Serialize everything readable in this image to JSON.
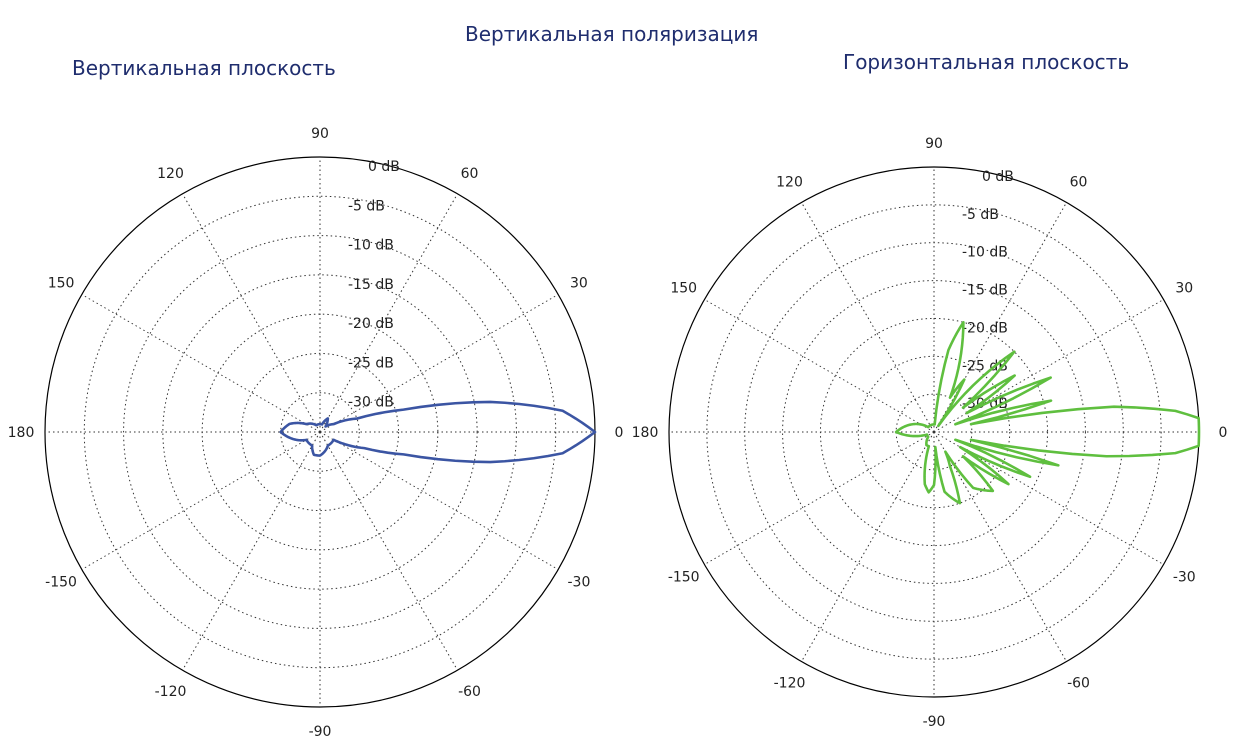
{
  "titles": {
    "main": "Вертикальная поляризация",
    "left": "Вертикальная плоскость",
    "right": "Горизонтальная плоскость"
  },
  "chart_data": [
    {
      "type": "polar",
      "title": "Вертикальная плоскость",
      "color": "#3b55a3",
      "angle_ticks": [
        "0",
        "30",
        "60",
        "90",
        "120",
        "150",
        "180",
        "-150",
        "-120",
        "-90",
        "-60",
        "-30"
      ],
      "radial_ticks": [
        "0 dB",
        "-5 dB",
        "-10 dB",
        "-15 dB",
        "-20 dB",
        "-25 dB",
        "-30 dB"
      ],
      "rlim_db": [
        -35,
        0
      ],
      "grid": true,
      "series": [
        {
          "angles_deg": [
            -180,
            -150,
            -120,
            -105,
            -90,
            -60,
            -45,
            -30,
            -20,
            -15,
            -10,
            -5,
            0,
            5,
            10,
            15,
            20,
            30,
            45,
            60,
            75,
            90,
            120,
            150,
            165,
            180
          ],
          "gain_db": [
            -30,
            -33,
            -33,
            -32,
            -32,
            -33,
            -33,
            -33,
            -29,
            -24,
            -13,
            -4,
            0,
            -4,
            -13,
            -24,
            -30,
            -33,
            -34,
            -33,
            -34,
            -34,
            -34,
            -33,
            -31,
            -30
          ]
        }
      ]
    },
    {
      "type": "polar",
      "title": "Горизонтальная плоскость",
      "color": "#5fbf3f",
      "angle_ticks": [
        "0",
        "30",
        "60",
        "90",
        "120",
        "150",
        "180",
        "-150",
        "-120",
        "-90",
        "-60",
        "-30"
      ],
      "radial_ticks": [
        "0 dB",
        "-5 dB",
        "-10 dB",
        "-15 dB",
        "-20 dB",
        "-25 dB",
        "-30 dB"
      ],
      "rlim_db": [
        -35,
        0
      ],
      "grid": true,
      "series": [
        {
          "angles_deg": [
            -180,
            -160,
            -140,
            -120,
            -110,
            -100,
            -95,
            -90,
            -85,
            -80,
            -70,
            -65,
            -60,
            -55,
            -45,
            -40,
            -35,
            -30,
            -25,
            -20,
            -15,
            -12,
            -8,
            -5,
            -3,
            0,
            3,
            5,
            8,
            12,
            15,
            20,
            25,
            30,
            35,
            40,
            45,
            55,
            60,
            65,
            70,
            75,
            80,
            85,
            90,
            95,
            100,
            110,
            120,
            140,
            160,
            180
          ],
          "gain_db": [
            -30,
            -34,
            -34,
            -33,
            -33,
            -28,
            -27,
            -28,
            -33,
            -27,
            -25,
            -30,
            -32,
            -26,
            -24,
            -30,
            -23,
            -31,
            -21,
            -32,
            -18,
            -30,
            -12,
            -3,
            0,
            0,
            0,
            -3,
            -11,
            -30,
            -19,
            -32,
            -18,
            -30,
            -22,
            -30,
            -20,
            -34,
            -27,
            -30,
            -25,
            -20,
            -24,
            -34,
            -34,
            -34,
            -34,
            -34,
            -34,
            -34,
            -32,
            -30
          ]
        }
      ]
    }
  ]
}
